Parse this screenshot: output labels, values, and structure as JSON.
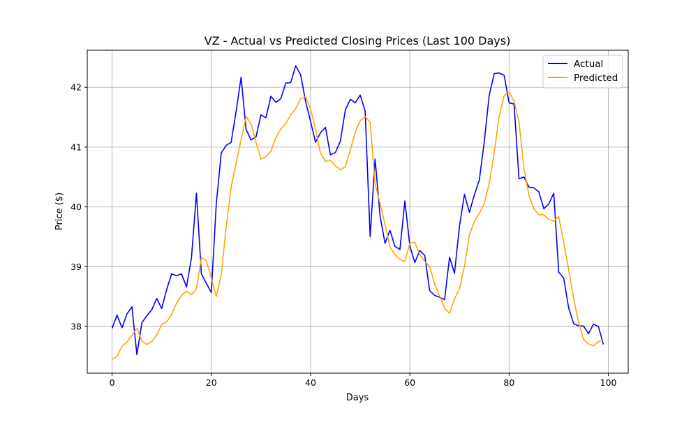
{
  "chart_data": {
    "type": "line",
    "title": "VZ - Actual vs Predicted Closing Prices (Last 100 Days)",
    "xlabel": "Days",
    "ylabel": "Price ($)",
    "xlim": [
      -5,
      104
    ],
    "ylim": [
      37.22,
      42.62
    ],
    "xticks": [
      0,
      20,
      40,
      60,
      80,
      100
    ],
    "yticks": [
      38,
      39,
      40,
      41,
      42
    ],
    "xtick_labels": [
      "0",
      "20",
      "40",
      "60",
      "80",
      "100"
    ],
    "ytick_labels": [
      "38",
      "39",
      "40",
      "41",
      "42"
    ],
    "grid": true,
    "legend_position": "top-right",
    "x": [
      0,
      1,
      2,
      3,
      4,
      5,
      6,
      7,
      8,
      9,
      10,
      11,
      12,
      13,
      14,
      15,
      16,
      17,
      18,
      19,
      20,
      21,
      22,
      23,
      24,
      25,
      26,
      27,
      28,
      29,
      30,
      31,
      32,
      33,
      34,
      35,
      36,
      37,
      38,
      39,
      40,
      41,
      42,
      43,
      44,
      45,
      46,
      47,
      48,
      49,
      50,
      51,
      52,
      53,
      54,
      55,
      56,
      57,
      58,
      59,
      60,
      61,
      62,
      63,
      64,
      65,
      66,
      67,
      68,
      69,
      70,
      71,
      72,
      73,
      74,
      75,
      76,
      77,
      78,
      79,
      80,
      81,
      82,
      83,
      84,
      85,
      86,
      87,
      88,
      89,
      90,
      91,
      92,
      93,
      94,
      95,
      96,
      97,
      98,
      99
    ],
    "series": [
      {
        "name": "Actual",
        "color": "#0000ff",
        "values": [
          37.97,
          38.19,
          37.98,
          38.21,
          38.33,
          37.53,
          38.06,
          38.18,
          38.28,
          38.47,
          38.3,
          38.62,
          38.88,
          38.85,
          38.88,
          38.66,
          39.15,
          40.23,
          38.88,
          38.72,
          38.57,
          40.05,
          40.9,
          41.03,
          41.08,
          41.6,
          42.17,
          41.3,
          41.12,
          41.17,
          41.54,
          41.49,
          41.85,
          41.75,
          41.81,
          42.07,
          42.08,
          42.36,
          42.21,
          41.76,
          41.43,
          41.08,
          41.24,
          41.33,
          40.87,
          40.91,
          41.1,
          41.62,
          41.8,
          41.74,
          41.87,
          41.6,
          39.5,
          40.8,
          39.85,
          39.39,
          39.61,
          39.34,
          39.29,
          40.1,
          39.35,
          39.07,
          39.27,
          39.19,
          38.6,
          38.52,
          38.49,
          38.45,
          39.16,
          38.89,
          39.68,
          40.21,
          39.91,
          40.2,
          40.45,
          41.09,
          41.87,
          42.23,
          42.24,
          42.2,
          41.74,
          41.72,
          40.47,
          40.5,
          40.33,
          40.32,
          40.25,
          39.97,
          40.05,
          40.23,
          38.91,
          38.81,
          38.31,
          38.05,
          38.01,
          38.01,
          37.88,
          38.04,
          38.0,
          37.7
        ]
      },
      {
        "name": "Predicted",
        "color": "#ffa500",
        "values": [
          37.45,
          37.5,
          37.67,
          37.74,
          37.85,
          37.97,
          37.76,
          37.7,
          37.75,
          37.86,
          38.03,
          38.08,
          38.2,
          38.39,
          38.52,
          38.59,
          38.53,
          38.63,
          39.15,
          39.1,
          38.81,
          38.5,
          38.87,
          39.66,
          40.33,
          40.74,
          41.12,
          41.51,
          41.39,
          41.08,
          40.8,
          40.84,
          40.93,
          41.16,
          41.3,
          41.39,
          41.54,
          41.64,
          41.81,
          41.84,
          41.64,
          41.3,
          40.9,
          40.76,
          40.78,
          40.69,
          40.62,
          40.67,
          40.95,
          41.25,
          41.44,
          41.51,
          41.42,
          40.39,
          40.06,
          39.71,
          39.33,
          39.2,
          39.12,
          39.09,
          39.39,
          39.41,
          39.2,
          39.09,
          39.0,
          38.71,
          38.51,
          38.31,
          38.22,
          38.46,
          38.63,
          39.01,
          39.53,
          39.76,
          39.89,
          40.06,
          40.39,
          40.91,
          41.51,
          41.86,
          41.92,
          41.77,
          41.42,
          40.64,
          40.19,
          39.97,
          39.87,
          39.87,
          39.79,
          39.76,
          39.84,
          39.4,
          38.95,
          38.47,
          38.07,
          37.78,
          37.71,
          37.68,
          37.75,
          37.78
        ]
      }
    ]
  }
}
